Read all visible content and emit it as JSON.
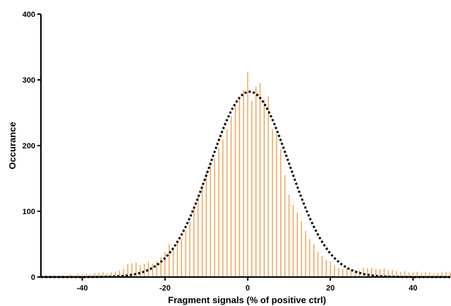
{
  "chart_data": {
    "type": "bar",
    "title": "",
    "xlabel": "Fragment signals (% of positive ctrl)",
    "ylabel": "Occurance",
    "xlim": [
      -50,
      49
    ],
    "ylim": [
      0,
      400
    ],
    "x_ticks": [
      -40,
      -20,
      0,
      20,
      40
    ],
    "y_ticks": [
      0,
      100,
      200,
      300,
      400
    ],
    "grid": false,
    "legend": "none",
    "bar_color": "#f0a050",
    "fit_color": "#000000",
    "bin_width": 1,
    "series": [
      {
        "type": "histogram",
        "x": [
          -50,
          -49,
          -48,
          -47,
          -46,
          -45,
          -44,
          -43,
          -42,
          -41,
          -40,
          -39,
          -38,
          -37,
          -36,
          -35,
          -34,
          -33,
          -32,
          -31,
          -30,
          -29,
          -28,
          -27,
          -26,
          -25,
          -24,
          -23,
          -22,
          -21,
          -20,
          -19,
          -18,
          -17,
          -16,
          -15,
          -14,
          -13,
          -12,
          -11,
          -10,
          -9,
          -8,
          -7,
          -6,
          -5,
          -4,
          -3,
          -2,
          -1,
          0,
          1,
          2,
          3,
          4,
          5,
          6,
          7,
          8,
          9,
          10,
          11,
          12,
          13,
          14,
          15,
          16,
          17,
          18,
          19,
          20,
          21,
          22,
          23,
          24,
          25,
          26,
          27,
          28,
          29,
          30,
          31,
          32,
          33,
          34,
          35,
          36,
          37,
          38,
          39,
          40,
          41,
          42,
          43,
          44,
          45,
          46,
          47,
          48,
          49
        ],
        "values": [
          2,
          3,
          2,
          3,
          2,
          3,
          2,
          4,
          3,
          5,
          4,
          5,
          4,
          6,
          6,
          7,
          6,
          7,
          8,
          10,
          12,
          20,
          21,
          22,
          18,
          20,
          24,
          20,
          24,
          30,
          38,
          50,
          45,
          55,
          58,
          70,
          85,
          105,
          122,
          140,
          160,
          172,
          180,
          196,
          210,
          225,
          245,
          260,
          272,
          285,
          312,
          268,
          290,
          295,
          270,
          275,
          225,
          218,
          195,
          155,
          125,
          110,
          98,
          85,
          70,
          58,
          50,
          38,
          32,
          26,
          23,
          18,
          14,
          12,
          13,
          12,
          11,
          10,
          14,
          13,
          14,
          12,
          12,
          13,
          10,
          11,
          9,
          8,
          9,
          7,
          7,
          8,
          5,
          7,
          6,
          5,
          6,
          7,
          8,
          7
        ]
      },
      {
        "type": "gaussian_fit",
        "amplitude": 282,
        "mean": 0.5,
        "sd": 9.6
      }
    ]
  }
}
